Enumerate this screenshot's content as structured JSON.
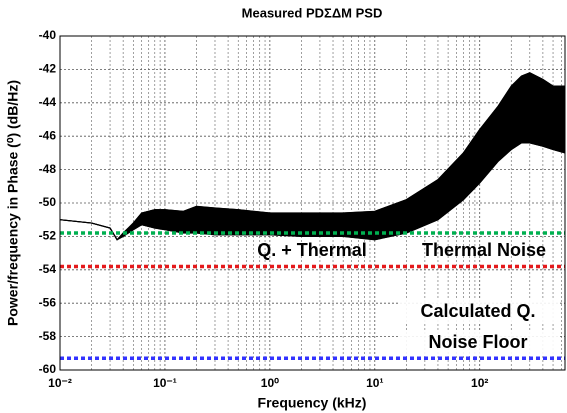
{
  "chart_data": {
    "type": "line",
    "title": "Measured PDΣΔM PSD",
    "xlabel": "Frequency (kHz)",
    "ylabel": "Power/frequency in Phase (⁰) (dB/Hz)",
    "xscale": "log",
    "xlim": [
      0.01,
      650
    ],
    "ylim": [
      -60,
      -40
    ],
    "xticks": [
      {
        "value": 0.01,
        "label": "10⁻²"
      },
      {
        "value": 0.1,
        "label": "10⁻¹"
      },
      {
        "value": 1,
        "label": "10⁰"
      },
      {
        "value": 10,
        "label": "10¹"
      },
      {
        "value": 100,
        "label": "10²"
      }
    ],
    "yticks": [
      -60,
      -58,
      -56,
      -54,
      -52,
      -50,
      -48,
      -46,
      -44,
      -42,
      -40
    ],
    "grid": true,
    "x": [
      0.01,
      0.02,
      0.03,
      0.035,
      0.04,
      0.05,
      0.06,
      0.08,
      0.1,
      0.15,
      0.2,
      0.3,
      0.5,
      1,
      2,
      5,
      10,
      20,
      40,
      70,
      100,
      150,
      200,
      250,
      300,
      400,
      500,
      650
    ],
    "series": [
      {
        "color": "#000000",
        "values": [
          -51.0,
          -51.2,
          -51.5,
          -52.2,
          -52.0,
          -51.6,
          -51.3,
          -51.5,
          -51.6,
          -51.8,
          -51.8,
          -51.9,
          -51.9,
          -51.9,
          -52.0,
          -52.0,
          -52.2,
          -51.8,
          -51.0,
          -49.8,
          -48.8,
          -47.5,
          -46.8,
          -46.4,
          -46.4,
          -46.6,
          -46.8,
          -47.0
        ]
      },
      {
        "color": "#000000",
        "values": [
          -51.0,
          -51.2,
          -51.5,
          -52.2,
          -51.8,
          -51.2,
          -50.6,
          -50.4,
          -50.4,
          -50.5,
          -50.2,
          -50.3,
          -50.4,
          -50.6,
          -50.6,
          -50.6,
          -50.5,
          -49.8,
          -48.6,
          -47.0,
          -45.6,
          -44.2,
          -43.0,
          -42.4,
          -42.2,
          -42.6,
          -43.0,
          -43.0
        ]
      }
    ],
    "reference_lines": [
      {
        "value": -51.8,
        "color": "#00b050"
      },
      {
        "value": -53.8,
        "color": "#e41a1c"
      },
      {
        "value": -59.3,
        "color": "#3333ff"
      }
    ],
    "annotations": [
      {
        "text": "Q. + Thermal",
        "color": "#00b050"
      },
      {
        "text": "Thermal Noise",
        "color": "#e41a1c"
      },
      {
        "text": "Calculated Q.",
        "color": "#3333ff"
      },
      {
        "text": "Noise Floor",
        "color": "#3333ff"
      }
    ]
  }
}
